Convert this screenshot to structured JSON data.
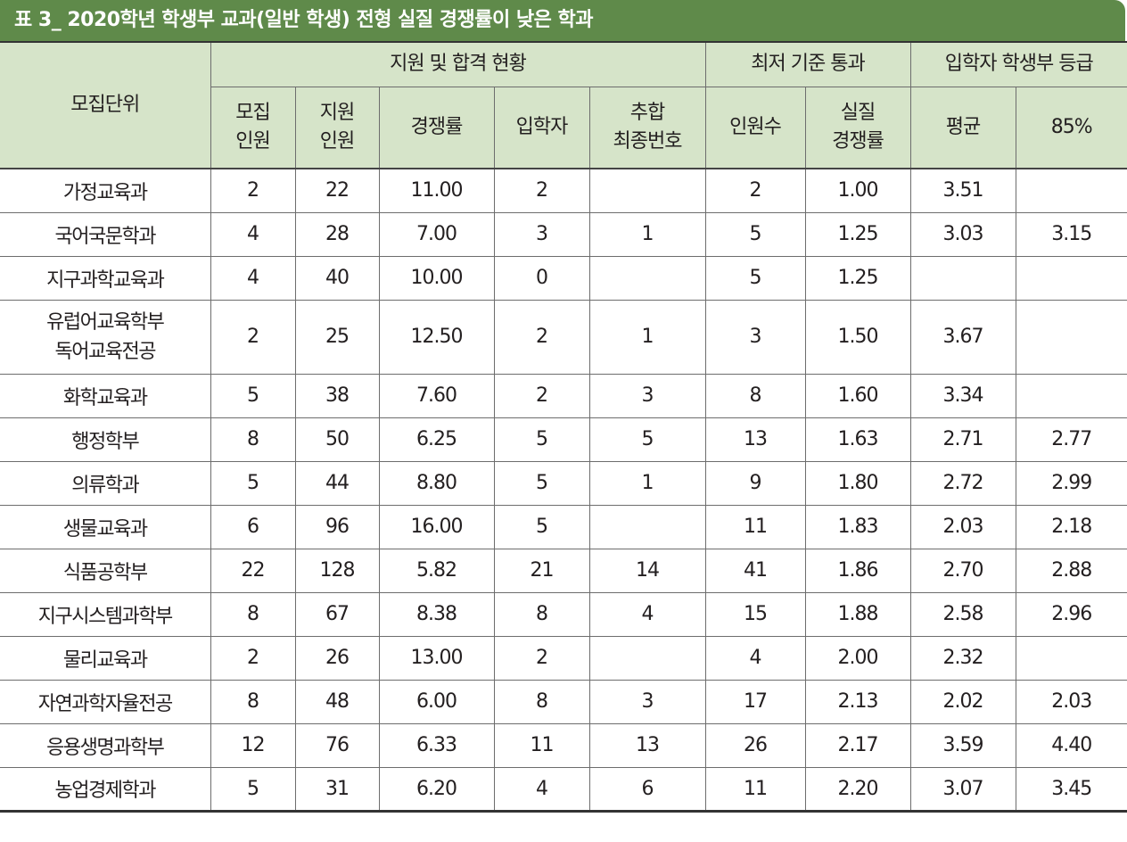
{
  "title": "표 3_ 2020학년 학생부 교과(일반 학생) 전형 실질 경쟁률이 낮은 학과",
  "header": {
    "unit": "모집단위",
    "group_apply": "지원 및 합격 현황",
    "group_min": "최저 기준 통과",
    "group_grade": "입학자 학생부 등급",
    "col_recruit_1": "모집",
    "col_recruit_2": "인원",
    "col_apply_1": "지원",
    "col_apply_2": "인원",
    "col_rate": "경쟁률",
    "col_admit": "입학자",
    "col_extra_1": "추합",
    "col_extra_2": "최종번호",
    "col_pass": "인원수",
    "col_real_1": "실질",
    "col_real_2": "경쟁률",
    "col_avg": "평균",
    "col_85": "85%"
  },
  "rows": [
    {
      "unit": "가정교육과",
      "recruit": "2",
      "apply": "22",
      "rate": "11.00",
      "admit": "2",
      "extra": "",
      "pass": "2",
      "real": "1.00",
      "avg": "3.51",
      "p85": ""
    },
    {
      "unit": "국어국문학과",
      "recruit": "4",
      "apply": "28",
      "rate": "7.00",
      "admit": "3",
      "extra": "1",
      "pass": "5",
      "real": "1.25",
      "avg": "3.03",
      "p85": "3.15"
    },
    {
      "unit": "지구과학교육과",
      "recruit": "4",
      "apply": "40",
      "rate": "10.00",
      "admit": "0",
      "extra": "",
      "pass": "5",
      "real": "1.25",
      "avg": "",
      "p85": ""
    },
    {
      "unit": "유럽어교육학부",
      "unit2": "독어교육전공",
      "recruit": "2",
      "apply": "25",
      "rate": "12.50",
      "admit": "2",
      "extra": "1",
      "pass": "3",
      "real": "1.50",
      "avg": "3.67",
      "p85": ""
    },
    {
      "unit": "화학교육과",
      "recruit": "5",
      "apply": "38",
      "rate": "7.60",
      "admit": "2",
      "extra": "3",
      "pass": "8",
      "real": "1.60",
      "avg": "3.34",
      "p85": ""
    },
    {
      "unit": "행정학부",
      "recruit": "8",
      "apply": "50",
      "rate": "6.25",
      "admit": "5",
      "extra": "5",
      "pass": "13",
      "real": "1.63",
      "avg": "2.71",
      "p85": "2.77"
    },
    {
      "unit": "의류학과",
      "recruit": "5",
      "apply": "44",
      "rate": "8.80",
      "admit": "5",
      "extra": "1",
      "pass": "9",
      "real": "1.80",
      "avg": "2.72",
      "p85": "2.99"
    },
    {
      "unit": "생물교육과",
      "recruit": "6",
      "apply": "96",
      "rate": "16.00",
      "admit": "5",
      "extra": "",
      "pass": "11",
      "real": "1.83",
      "avg": "2.03",
      "p85": "2.18"
    },
    {
      "unit": "식품공학부",
      "recruit": "22",
      "apply": "128",
      "rate": "5.82",
      "admit": "21",
      "extra": "14",
      "pass": "41",
      "real": "1.86",
      "avg": "2.70",
      "p85": "2.88"
    },
    {
      "unit": "지구시스템과학부",
      "recruit": "8",
      "apply": "67",
      "rate": "8.38",
      "admit": "8",
      "extra": "4",
      "pass": "15",
      "real": "1.88",
      "avg": "2.58",
      "p85": "2.96"
    },
    {
      "unit": "물리교육과",
      "recruit": "2",
      "apply": "26",
      "rate": "13.00",
      "admit": "2",
      "extra": "",
      "pass": "4",
      "real": "2.00",
      "avg": "2.32",
      "p85": ""
    },
    {
      "unit": "자연과학자율전공",
      "recruit": "8",
      "apply": "48",
      "rate": "6.00",
      "admit": "8",
      "extra": "3",
      "pass": "17",
      "real": "2.13",
      "avg": "2.02",
      "p85": "2.03"
    },
    {
      "unit": "응용생명과학부",
      "recruit": "12",
      "apply": "76",
      "rate": "6.33",
      "admit": "11",
      "extra": "13",
      "pass": "26",
      "real": "2.17",
      "avg": "3.59",
      "p85": "4.40"
    },
    {
      "unit": "농업경제학과",
      "recruit": "5",
      "apply": "31",
      "rate": "6.20",
      "admit": "4",
      "extra": "6",
      "pass": "11",
      "real": "2.20",
      "avg": "3.07",
      "p85": "3.45"
    }
  ]
}
